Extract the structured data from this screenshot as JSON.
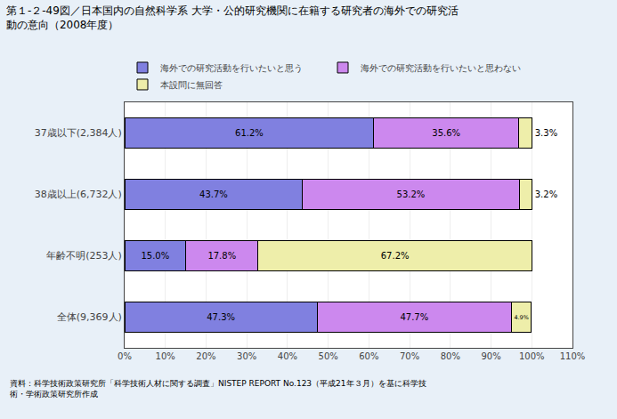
{
  "chart_data": {
    "type": "bar",
    "orientation": "horizontal",
    "stacked": true,
    "title": "第１-２-49図／日本国内の自然科学系 大学・公的研究機関に在籍する研究者の海外での研究活\n動の意向（2008年度）",
    "categories": [
      "37歳以下(2,384人)",
      "38歳以上(6,732人)",
      "年齢不明(253人)",
      "全体(9,369人)"
    ],
    "series": [
      {
        "name": "海外での研究活動を行いたいと思う",
        "color": "#8080e0",
        "values": [
          61.2,
          43.7,
          15.0,
          47.3
        ],
        "value_labels": [
          "61.2%",
          "43.7%",
          "15.0%",
          "47.3%"
        ]
      },
      {
        "name": "海外での研究活動を行いたいと思わない",
        "color": "#cc88ee",
        "values": [
          35.6,
          53.2,
          17.8,
          47.7
        ],
        "value_labels": [
          "35.6%",
          "53.2%",
          "17.8%",
          "47.7%"
        ]
      },
      {
        "name": "本設問に無回答",
        "color": "#eeeeaa",
        "values": [
          3.3,
          3.2,
          67.2,
          4.9
        ],
        "value_labels": [
          "3.3%",
          "3.2%",
          "67.2%",
          "4.9%"
        ]
      }
    ],
    "xlim": [
      0,
      110
    ],
    "xticks": [
      {
        "value": 0,
        "label": "0%"
      },
      {
        "value": 10,
        "label": "10%"
      },
      {
        "value": 20,
        "label": "20%"
      },
      {
        "value": 30,
        "label": "30%"
      },
      {
        "value": 40,
        "label": "40%"
      },
      {
        "value": 50,
        "label": "50%"
      },
      {
        "value": 60,
        "label": "60%"
      },
      {
        "value": 70,
        "label": "70%"
      },
      {
        "value": 80,
        "label": "80%"
      },
      {
        "value": 90,
        "label": "90%"
      },
      {
        "value": 100,
        "label": "100%"
      },
      {
        "value": 110,
        "label": "110%"
      }
    ],
    "grid": true,
    "data_labels": true,
    "legend": "top",
    "annotations": [
      "資料：科学技術政策研究所「科学技術人材に関する調査」NISTEP REPORT No.123（平成21年３月）を基に科学技\n術・学術政策研究所作成"
    ]
  }
}
